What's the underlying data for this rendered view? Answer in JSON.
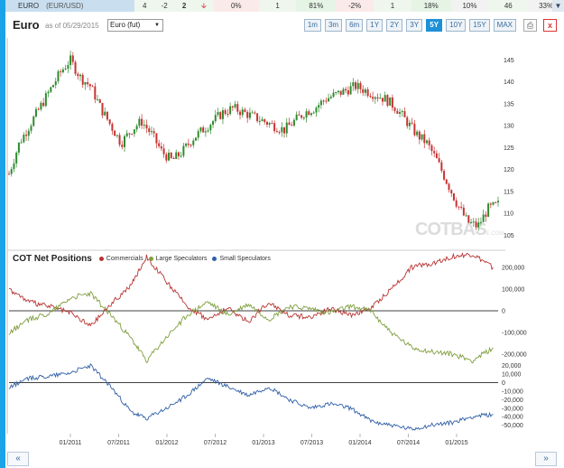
{
  "ticker": {
    "name": "EURO",
    "pair": "(EUR/USD)",
    "values": [
      "4",
      "-2",
      "2"
    ],
    "pct1": "0%",
    "v1": "1",
    "pct2": "81%",
    "pct3": "-2%",
    "v2": "1",
    "pct4": "18%",
    "pct5": "10%",
    "v3": "46",
    "pct6": "33%",
    "select_icon": "triangle-down-icon",
    "down_icon": "red-arrow-down-icon"
  },
  "header": {
    "title": "Euro",
    "as_of": "as of 05/29/2015",
    "contract": "Euro (fut)",
    "ranges": [
      "1m",
      "3m",
      "6m",
      "1Y",
      "2Y",
      "3Y",
      "5Y",
      "10Y",
      "15Y",
      "MAX"
    ],
    "active_range": "5Y",
    "print_icon": "print-icon",
    "close_label": "x"
  },
  "watermark": {
    "main": "COTBAS",
    "suffix": "E.COM"
  },
  "nav": {
    "prev": "«",
    "next": "»"
  },
  "colors": {
    "commercials": "#b83232",
    "large_speculators": "#7f9f3f",
    "small_speculators": "#2f5fa7",
    "up_candle": "#2e8b2e",
    "down_candle": "#c83232",
    "accent": "#1aa3e8"
  },
  "chart_data": [
    {
      "type": "line",
      "title": "Euro",
      "subtitle": "as of 05/29/2015",
      "ylim": [
        103,
        150
      ],
      "y_ticks": [
        105,
        110,
        115,
        120,
        125,
        130,
        135,
        140,
        145
      ],
      "series": [
        {
          "values": [
            [
              0,
              119
            ],
            [
              2,
              126
            ],
            [
              4,
              130
            ],
            [
              6,
              134
            ],
            [
              8,
              138
            ],
            [
              10,
              142
            ],
            [
              12,
              145
            ],
            [
              14,
              141
            ],
            [
              16,
              139
            ],
            [
              18,
              134
            ],
            [
              20,
              130
            ],
            [
              22,
              126
            ],
            [
              24,
              129
            ],
            [
              26,
              131
            ],
            [
              28,
              128
            ],
            [
              30,
              124
            ],
            [
              32,
              122
            ],
            [
              34,
              124
            ],
            [
              36,
              127
            ],
            [
              38,
              129
            ],
            [
              40,
              131
            ],
            [
              42,
              133
            ],
            [
              44,
              134
            ],
            [
              46,
              133
            ],
            [
              48,
              132
            ],
            [
              50,
              131
            ],
            [
              52,
              130
            ],
            [
              54,
              129
            ],
            [
              56,
              131
            ],
            [
              58,
              133
            ],
            [
              60,
              134
            ],
            [
              62,
              136
            ],
            [
              64,
              137
            ],
            [
              66,
              138
            ],
            [
              68,
              139
            ],
            [
              70,
              138
            ],
            [
              72,
              137
            ],
            [
              74,
              136
            ],
            [
              76,
              134
            ],
            [
              78,
              131
            ],
            [
              80,
              128
            ],
            [
              82,
              126
            ],
            [
              84,
              122
            ],
            [
              86,
              117
            ],
            [
              88,
              112
            ],
            [
              90,
              108
            ],
            [
              92,
              107
            ],
            [
              94,
              111
            ],
            [
              96,
              112
            ]
          ]
        }
      ]
    },
    {
      "type": "line",
      "title": "COT Net Positions",
      "ylim": [
        -200000,
        200000
      ],
      "y_ticks": [
        -200000,
        -100000,
        0,
        100000,
        200000
      ],
      "y_tick_labels": [
        "-200,000",
        "-100,000",
        "0",
        "100,000",
        "200,000"
      ],
      "series": [
        {
          "name": "Commercials",
          "values": [
            [
              0,
              100000
            ],
            [
              4,
              40000
            ],
            [
              8,
              20000
            ],
            [
              12,
              -10000
            ],
            [
              16,
              -70000
            ],
            [
              20,
              30000
            ],
            [
              24,
              120000
            ],
            [
              27,
              250000
            ],
            [
              31,
              130000
            ],
            [
              35,
              20000
            ],
            [
              39,
              -40000
            ],
            [
              43,
              10000
            ],
            [
              47,
              -50000
            ],
            [
              51,
              40000
            ],
            [
              55,
              -20000
            ],
            [
              59,
              -30000
            ],
            [
              63,
              10000
            ],
            [
              67,
              -20000
            ],
            [
              71,
              10000
            ],
            [
              75,
              100000
            ],
            [
              79,
              200000
            ],
            [
              83,
              220000
            ],
            [
              87,
              250000
            ],
            [
              91,
              260000
            ],
            [
              95,
              200000
            ]
          ]
        },
        {
          "name": "Large Speculators",
          "values": [
            [
              0,
              -100000
            ],
            [
              4,
              -40000
            ],
            [
              8,
              -10000
            ],
            [
              12,
              60000
            ],
            [
              16,
              80000
            ],
            [
              20,
              -20000
            ],
            [
              24,
              -130000
            ],
            [
              27,
              -230000
            ],
            [
              31,
              -120000
            ],
            [
              35,
              -20000
            ],
            [
              39,
              40000
            ],
            [
              43,
              -20000
            ],
            [
              47,
              30000
            ],
            [
              51,
              -40000
            ],
            [
              55,
              20000
            ],
            [
              59,
              10000
            ],
            [
              63,
              -10000
            ],
            [
              67,
              20000
            ],
            [
              71,
              0
            ],
            [
              75,
              -100000
            ],
            [
              79,
              -170000
            ],
            [
              83,
              -190000
            ],
            [
              87,
              -200000
            ],
            [
              91,
              -230000
            ],
            [
              95,
              -170000
            ]
          ]
        }
      ]
    },
    {
      "type": "line",
      "ylim": [
        -60000,
        25000
      ],
      "y_ticks": [
        -50000,
        -40000,
        -30000,
        -20000,
        -10000,
        0,
        10000,
        20000
      ],
      "y_tick_labels": [
        "-50,000",
        "-40,000",
        "-30,000",
        "-20,000",
        "-10,000",
        "0",
        "10,000",
        "20,000"
      ],
      "x_tick_labels": [
        "01/2011",
        "07/2011",
        "01/2012",
        "07/2012",
        "01/2013",
        "07/2013",
        "01/2014",
        "07/2014",
        "01/2015"
      ],
      "series": [
        {
          "name": "Small Speculators",
          "values": [
            [
              0,
              -5000
            ],
            [
              4,
              5000
            ],
            [
              8,
              8000
            ],
            [
              12,
              12000
            ],
            [
              16,
              20000
            ],
            [
              20,
              -5000
            ],
            [
              24,
              -35000
            ],
            [
              27,
              -42000
            ],
            [
              31,
              -30000
            ],
            [
              35,
              -15000
            ],
            [
              39,
              5000
            ],
            [
              43,
              -5000
            ],
            [
              47,
              -15000
            ],
            [
              51,
              -5000
            ],
            [
              55,
              -20000
            ],
            [
              59,
              -30000
            ],
            [
              63,
              -25000
            ],
            [
              67,
              -30000
            ],
            [
              71,
              -45000
            ],
            [
              75,
              -50000
            ],
            [
              79,
              -55000
            ],
            [
              83,
              -50000
            ],
            [
              87,
              -47000
            ],
            [
              91,
              -40000
            ],
            [
              95,
              -37000
            ]
          ]
        }
      ]
    }
  ],
  "legend": {
    "title": "COT Net Positions",
    "items": [
      "Commercials",
      "Large Speculators",
      "Small Speculators"
    ]
  }
}
